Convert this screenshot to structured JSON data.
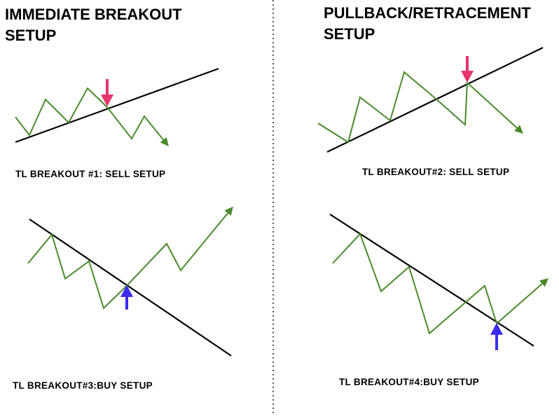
{
  "left_panel": {
    "title_line1": "IMMEDIATE BREAKOUT",
    "title_line2": "SETUP",
    "caption_top": "TL BREAKOUT #1: SELL SETUP",
    "caption_bottom": "TL BREAKOUT#3:BUY SETUP"
  },
  "right_panel": {
    "title_line1": "PULLBACK/RETRACEMENT",
    "title_line2": "SETUP",
    "caption_top": "TL BREAKOUT#2: SELL SETUP",
    "caption_bottom": "TL BREAKOUT#4:BUY SETUP"
  },
  "colors": {
    "trendline": "#000000",
    "price": "#4a8a2a",
    "sell_arrow": "#e8336b",
    "buy_arrow": "#3b2cf0",
    "divider": "#555555"
  },
  "icons": {
    "sell_marker": "down-arrow-icon",
    "buy_marker": "up-arrow-icon"
  }
}
